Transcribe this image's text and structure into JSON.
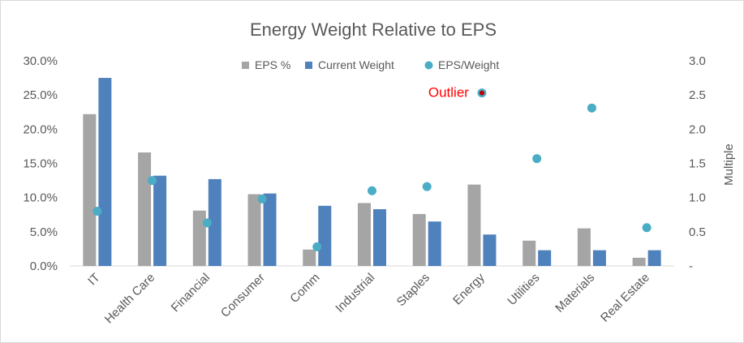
{
  "chart_data": {
    "type": "bar",
    "title": "Energy Weight Relative to EPS",
    "categories": [
      "IT",
      "Health Care",
      "Financial",
      "Consumer",
      "Comm",
      "Industrial",
      "Staples",
      "Energy",
      "Utilities",
      "Materials",
      "Real Estate"
    ],
    "series": [
      {
        "name": "EPS %",
        "type": "bar",
        "axis": "left",
        "color": "#a5a5a5",
        "values": [
          22.2,
          16.6,
          8.1,
          10.5,
          2.4,
          9.2,
          7.6,
          11.9,
          3.7,
          5.5,
          1.2
        ]
      },
      {
        "name": "Current Weight",
        "type": "bar",
        "axis": "left",
        "color": "#4f81bd",
        "values": [
          27.5,
          13.2,
          12.7,
          10.6,
          8.8,
          8.3,
          6.5,
          4.6,
          2.3,
          2.3,
          2.3
        ]
      },
      {
        "name": "EPS/Weight",
        "type": "scatter",
        "axis": "right",
        "color": "#4bacc6",
        "values": [
          0.8,
          1.25,
          0.63,
          0.98,
          0.28,
          1.1,
          1.16,
          2.53,
          1.57,
          2.31,
          0.56
        ]
      }
    ],
    "y_left": {
      "min": 0,
      "max": 30,
      "ticks": [
        "0.0%",
        "5.0%",
        "10.0%",
        "15.0%",
        "20.0%",
        "25.0%",
        "30.0%"
      ]
    },
    "y_right": {
      "min": 0,
      "max": 3,
      "ticks": [
        "-",
        "0.5",
        "1.0",
        "1.5",
        "2.0",
        "2.5",
        "3.0"
      ],
      "label": "Multiple"
    },
    "legend_position": "top",
    "grid": false,
    "annotation": {
      "text": "Outlier",
      "category": "Energy",
      "color": "#ff0000",
      "marker_color": "#c00000"
    }
  }
}
